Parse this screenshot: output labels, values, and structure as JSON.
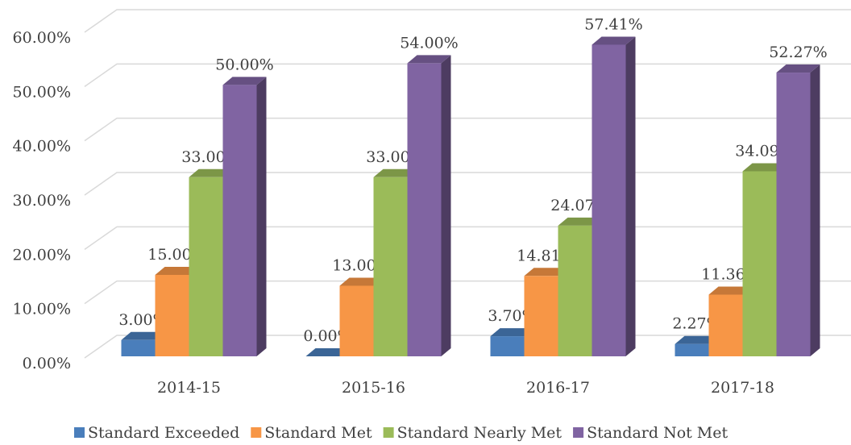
{
  "chart_data": {
    "type": "bar3d",
    "categories": [
      "2014-15",
      "2015-16",
      "2016-17",
      "2017-18"
    ],
    "series": [
      {
        "name": "Standard Exceeded",
        "color": "#4a7ebb",
        "values": [
          3.0,
          0.0,
          3.7,
          2.27
        ],
        "value_labels": [
          "3.00%",
          "0.00%",
          "3.70%",
          "2.27%"
        ]
      },
      {
        "name": "Standard Met",
        "color": "#f79646",
        "values": [
          15.0,
          13.0,
          14.81,
          11.36
        ],
        "value_labels": [
          "15.00%",
          "13.00%",
          "14.81%",
          "11.36%"
        ]
      },
      {
        "name": "Standard Nearly Met",
        "color": "#9bbb59",
        "values": [
          33.0,
          33.0,
          24.07,
          34.09
        ],
        "value_labels": [
          "33.00%",
          "33.00%",
          "24.07%",
          "34.09%"
        ]
      },
      {
        "name": "Standard Not Met",
        "color": "#8064a2",
        "values": [
          50.0,
          54.0,
          57.41,
          52.27
        ],
        "value_labels": [
          "50.00%",
          "54.00%",
          "57.41%",
          "52.27%"
        ]
      }
    ],
    "ylim": [
      0,
      60
    ],
    "yticks": [
      {
        "value": 0,
        "label": "0.00%"
      },
      {
        "value": 10,
        "label": "10.00%"
      },
      {
        "value": 20,
        "label": "20.00%"
      },
      {
        "value": 30,
        "label": "30.00%"
      },
      {
        "value": 40,
        "label": "40.00%"
      },
      {
        "value": 50,
        "label": "50.00%"
      },
      {
        "value": 60,
        "label": "60.00%"
      }
    ],
    "grid": true,
    "legend": "bottom"
  }
}
